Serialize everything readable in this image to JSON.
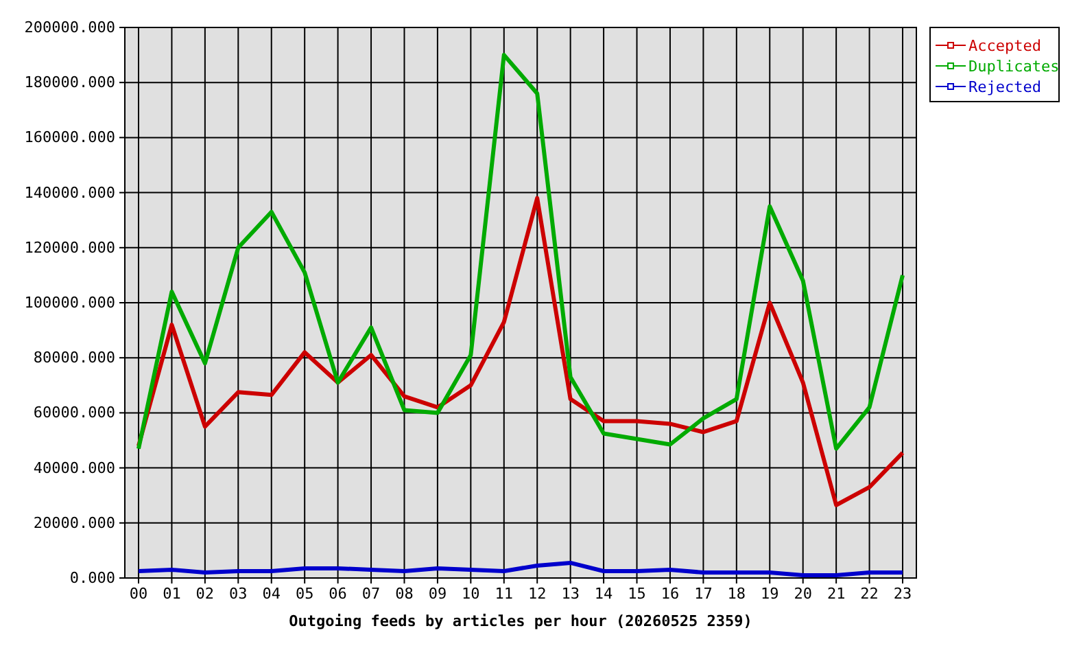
{
  "chart_data": {
    "type": "line",
    "xlabel": "Outgoing feeds by articles per hour (20260525 2359)",
    "categories": [
      "00",
      "01",
      "02",
      "03",
      "04",
      "05",
      "06",
      "07",
      "08",
      "09",
      "10",
      "11",
      "12",
      "13",
      "14",
      "15",
      "16",
      "17",
      "18",
      "19",
      "20",
      "21",
      "22",
      "23"
    ],
    "series": [
      {
        "name": "Accepted",
        "color": "#cc0000",
        "values": [
          48000,
          92000,
          55000,
          67500,
          66500,
          82000,
          71000,
          81000,
          66000,
          62000,
          70000,
          93000,
          138000,
          65000,
          57000,
          57000,
          56000,
          53000,
          57000,
          100000,
          71000,
          26500,
          33000,
          45500
        ]
      },
      {
        "name": "Duplicates",
        "color": "#00aa00",
        "values": [
          47000,
          104000,
          78000,
          120000,
          133000,
          111000,
          71000,
          91000,
          61000,
          60000,
          81000,
          190000,
          176000,
          73000,
          52500,
          50500,
          48500,
          58000,
          65000,
          135000,
          108000,
          47000,
          62000,
          110000
        ]
      },
      {
        "name": "Rejected",
        "color": "#0000cc",
        "values": [
          2500,
          3000,
          2000,
          2500,
          2500,
          3500,
          3500,
          3000,
          2500,
          3500,
          3000,
          2500,
          4500,
          5500,
          2500,
          2500,
          3000,
          2000,
          2000,
          2000,
          1000,
          1000,
          2000,
          2000
        ]
      }
    ],
    "ylim": [
      0,
      200000
    ],
    "yticks": [
      {
        "value": 0,
        "label": "0.000"
      },
      {
        "value": 20000,
        "label": "20000.000"
      },
      {
        "value": 40000,
        "label": "40000.000"
      },
      {
        "value": 60000,
        "label": "60000.000"
      },
      {
        "value": 80000,
        "label": "80000.000"
      },
      {
        "value": 100000,
        "label": "100000.000"
      },
      {
        "value": 120000,
        "label": "120000.000"
      },
      {
        "value": 140000,
        "label": "140000.000"
      },
      {
        "value": 160000,
        "label": "160000.000"
      },
      {
        "value": 180000,
        "label": "180000.000"
      },
      {
        "value": 200000,
        "label": "200000.000"
      }
    ],
    "grid": true,
    "legend": "top right",
    "line_style": "solid"
  }
}
